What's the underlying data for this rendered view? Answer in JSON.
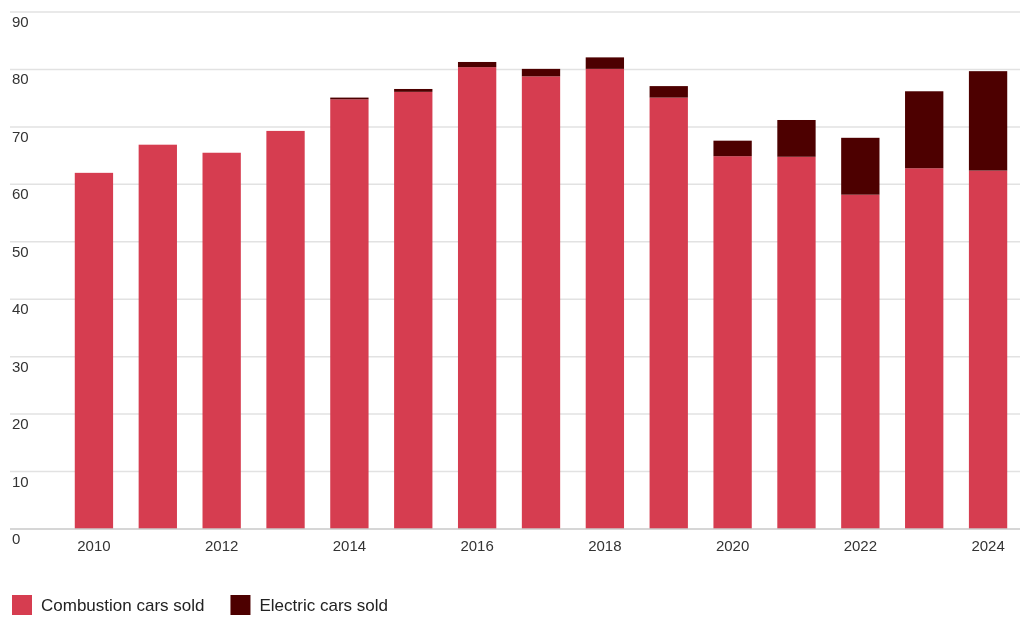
{
  "chart_data": {
    "type": "bar",
    "stacked": true,
    "categories": [
      "2010",
      null,
      "2012",
      null,
      "2014",
      null,
      "2016",
      null,
      "2018",
      null,
      "2020",
      null,
      "2022",
      null,
      "2024"
    ],
    "series": [
      {
        "name": "Combustion cars sold",
        "color": "#d63d50",
        "values": [
          62.0,
          66.9,
          65.5,
          69.3,
          74.8,
          76.1,
          80.4,
          78.8,
          80.1,
          75.1,
          64.9,
          64.8,
          58.2,
          62.8,
          62.4
        ]
      },
      {
        "name": "Electric cars sold",
        "color": "#4d0000",
        "values": [
          null,
          null,
          null,
          null,
          0.3,
          0.5,
          0.9,
          1.3,
          2.0,
          2.0,
          2.7,
          6.4,
          9.9,
          13.4,
          17.3
        ]
      }
    ],
    "ylim": [
      0,
      90
    ],
    "yticks": [
      0,
      10,
      20,
      30,
      40,
      50,
      60,
      70,
      80,
      90
    ],
    "grid": "y",
    "legend": "bottom"
  }
}
